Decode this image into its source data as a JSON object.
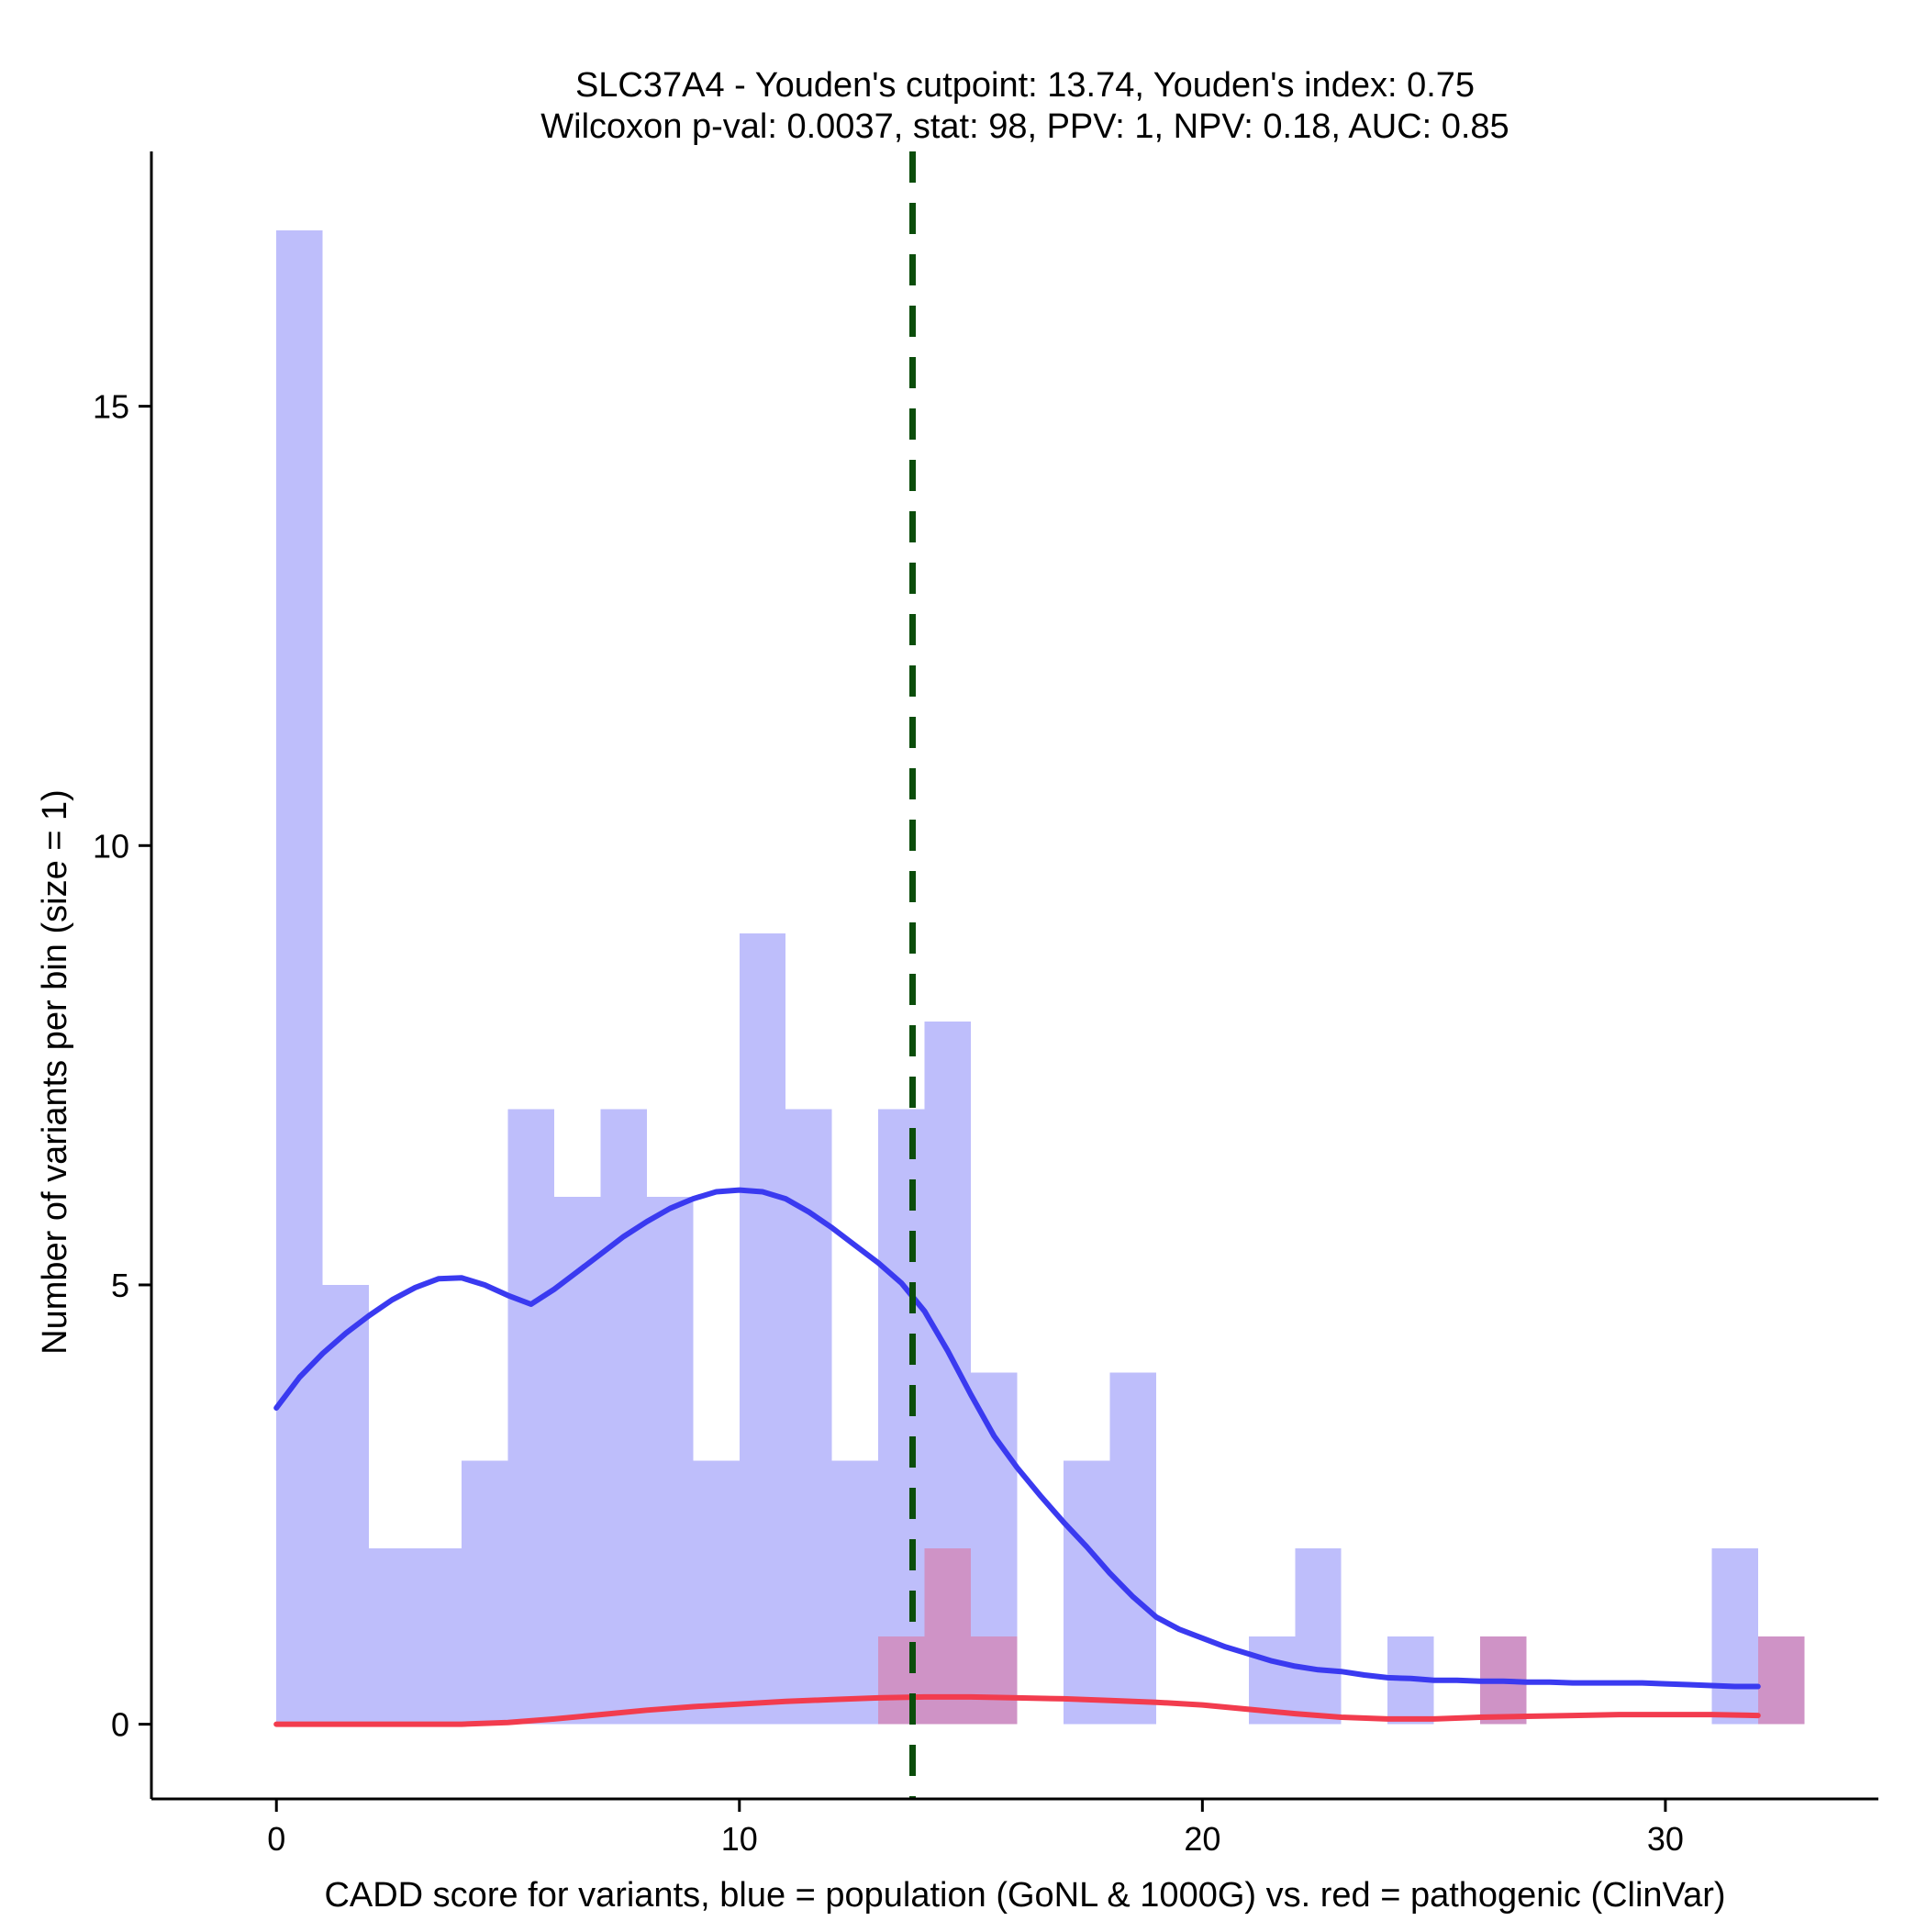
{
  "chart_data": {
    "type": "histogram",
    "title_line1": "SLC37A4 - Youden's cutpoint: 13.74, Youden's index: 0.75",
    "title_line2": "Wilcoxon p-val: 0.0037, stat: 98, PPV: 1, NPV: 0.18, AUC: 0.85",
    "xlabel": "CADD score for variants, blue = population (GoNL & 1000G) vs. red = pathogenic (ClinVar)",
    "ylabel": "Number of variants per bin (size = 1)",
    "xlim": [
      -2.7,
      34.6
    ],
    "ylim": [
      -0.85,
      17.9
    ],
    "x_ticks": [
      0,
      10,
      20,
      30
    ],
    "y_ticks": [
      0,
      5,
      10,
      15
    ],
    "bin_size": 1,
    "cutpoint": 13.74,
    "series": [
      {
        "name": "population (GoNL & 1000G)",
        "color": "#bebefb",
        "bins": [
          {
            "x0": 0,
            "x1": 1,
            "count": 17
          },
          {
            "x0": 1,
            "x1": 2,
            "count": 5
          },
          {
            "x0": 2,
            "x1": 3,
            "count": 2
          },
          {
            "x0": 3,
            "x1": 4,
            "count": 2
          },
          {
            "x0": 4,
            "x1": 5,
            "count": 3
          },
          {
            "x0": 5,
            "x1": 6,
            "count": 7
          },
          {
            "x0": 6,
            "x1": 7,
            "count": 6
          },
          {
            "x0": 7,
            "x1": 8,
            "count": 7
          },
          {
            "x0": 8,
            "x1": 9,
            "count": 6
          },
          {
            "x0": 9,
            "x1": 10,
            "count": 3
          },
          {
            "x0": 10,
            "x1": 11,
            "count": 9
          },
          {
            "x0": 11,
            "x1": 12,
            "count": 7
          },
          {
            "x0": 12,
            "x1": 13,
            "count": 3
          },
          {
            "x0": 13,
            "x1": 14,
            "count": 7
          },
          {
            "x0": 14,
            "x1": 15,
            "count": 8
          },
          {
            "x0": 15,
            "x1": 16,
            "count": 4
          },
          {
            "x0": 17,
            "x1": 18,
            "count": 3
          },
          {
            "x0": 18,
            "x1": 19,
            "count": 4
          },
          {
            "x0": 21,
            "x1": 22,
            "count": 1
          },
          {
            "x0": 22,
            "x1": 23,
            "count": 2
          },
          {
            "x0": 24,
            "x1": 25,
            "count": 1
          },
          {
            "x0": 26,
            "x1": 27,
            "count": 1
          },
          {
            "x0": 31,
            "x1": 32,
            "count": 2
          }
        ],
        "density_line": {
          "color": "#3a3af0",
          "x": [
            0,
            0.5,
            1,
            1.5,
            2,
            2.5,
            3,
            3.5,
            4,
            4.5,
            5,
            5.5,
            6,
            6.5,
            7,
            7.5,
            8,
            8.5,
            9,
            9.5,
            10,
            10.5,
            11,
            11.5,
            12,
            12.5,
            13,
            13.5,
            14,
            14.5,
            15,
            15.5,
            16,
            16.5,
            17,
            17.5,
            18,
            18.5,
            19,
            19.5,
            20,
            20.5,
            21,
            21.5,
            22,
            22.5,
            23,
            23.5,
            24,
            24.5,
            25,
            25.5,
            26,
            26.5,
            27,
            27.5,
            28,
            28.5,
            29,
            29.5,
            30,
            30.5,
            31,
            31.5,
            32
          ],
          "y": [
            3.6,
            3.95,
            4.22,
            4.45,
            4.65,
            4.83,
            4.97,
            5.07,
            5.08,
            5.0,
            4.88,
            4.78,
            4.95,
            5.15,
            5.35,
            5.55,
            5.72,
            5.87,
            5.98,
            6.06,
            6.08,
            6.06,
            5.98,
            5.83,
            5.65,
            5.45,
            5.25,
            5.02,
            4.7,
            4.25,
            3.75,
            3.28,
            2.92,
            2.6,
            2.3,
            2.02,
            1.72,
            1.45,
            1.22,
            1.08,
            0.98,
            0.88,
            0.8,
            0.72,
            0.66,
            0.62,
            0.6,
            0.56,
            0.53,
            0.52,
            0.5,
            0.5,
            0.49,
            0.49,
            0.48,
            0.48,
            0.47,
            0.47,
            0.47,
            0.47,
            0.46,
            0.45,
            0.44,
            0.43,
            0.43
          ]
        }
      },
      {
        "name": "pathogenic (ClinVar)",
        "color": "#cf93c6",
        "bins": [
          {
            "x0": 13,
            "x1": 14,
            "count": 1
          },
          {
            "x0": 14,
            "x1": 15,
            "count": 2
          },
          {
            "x0": 15,
            "x1": 16,
            "count": 1
          },
          {
            "x0": 26,
            "x1": 27,
            "count": 1
          },
          {
            "x0": 32,
            "x1": 33,
            "count": 1
          }
        ],
        "density_line": {
          "color": "#f23c4e",
          "x": [
            0,
            2,
            4,
            5,
            6,
            7,
            8,
            9,
            10,
            11,
            12,
            13,
            14,
            15,
            16,
            17,
            18,
            19,
            20,
            21,
            22,
            23,
            24,
            25,
            26,
            27,
            28,
            29,
            30,
            31,
            32
          ],
          "y": [
            0.0,
            0.0,
            0.0,
            0.02,
            0.06,
            0.11,
            0.16,
            0.2,
            0.23,
            0.26,
            0.28,
            0.3,
            0.31,
            0.31,
            0.3,
            0.29,
            0.27,
            0.25,
            0.22,
            0.17,
            0.12,
            0.08,
            0.06,
            0.06,
            0.08,
            0.09,
            0.1,
            0.11,
            0.11,
            0.11,
            0.1
          ]
        }
      }
    ],
    "cutpoint_line_color": "#0b4d0b"
  }
}
